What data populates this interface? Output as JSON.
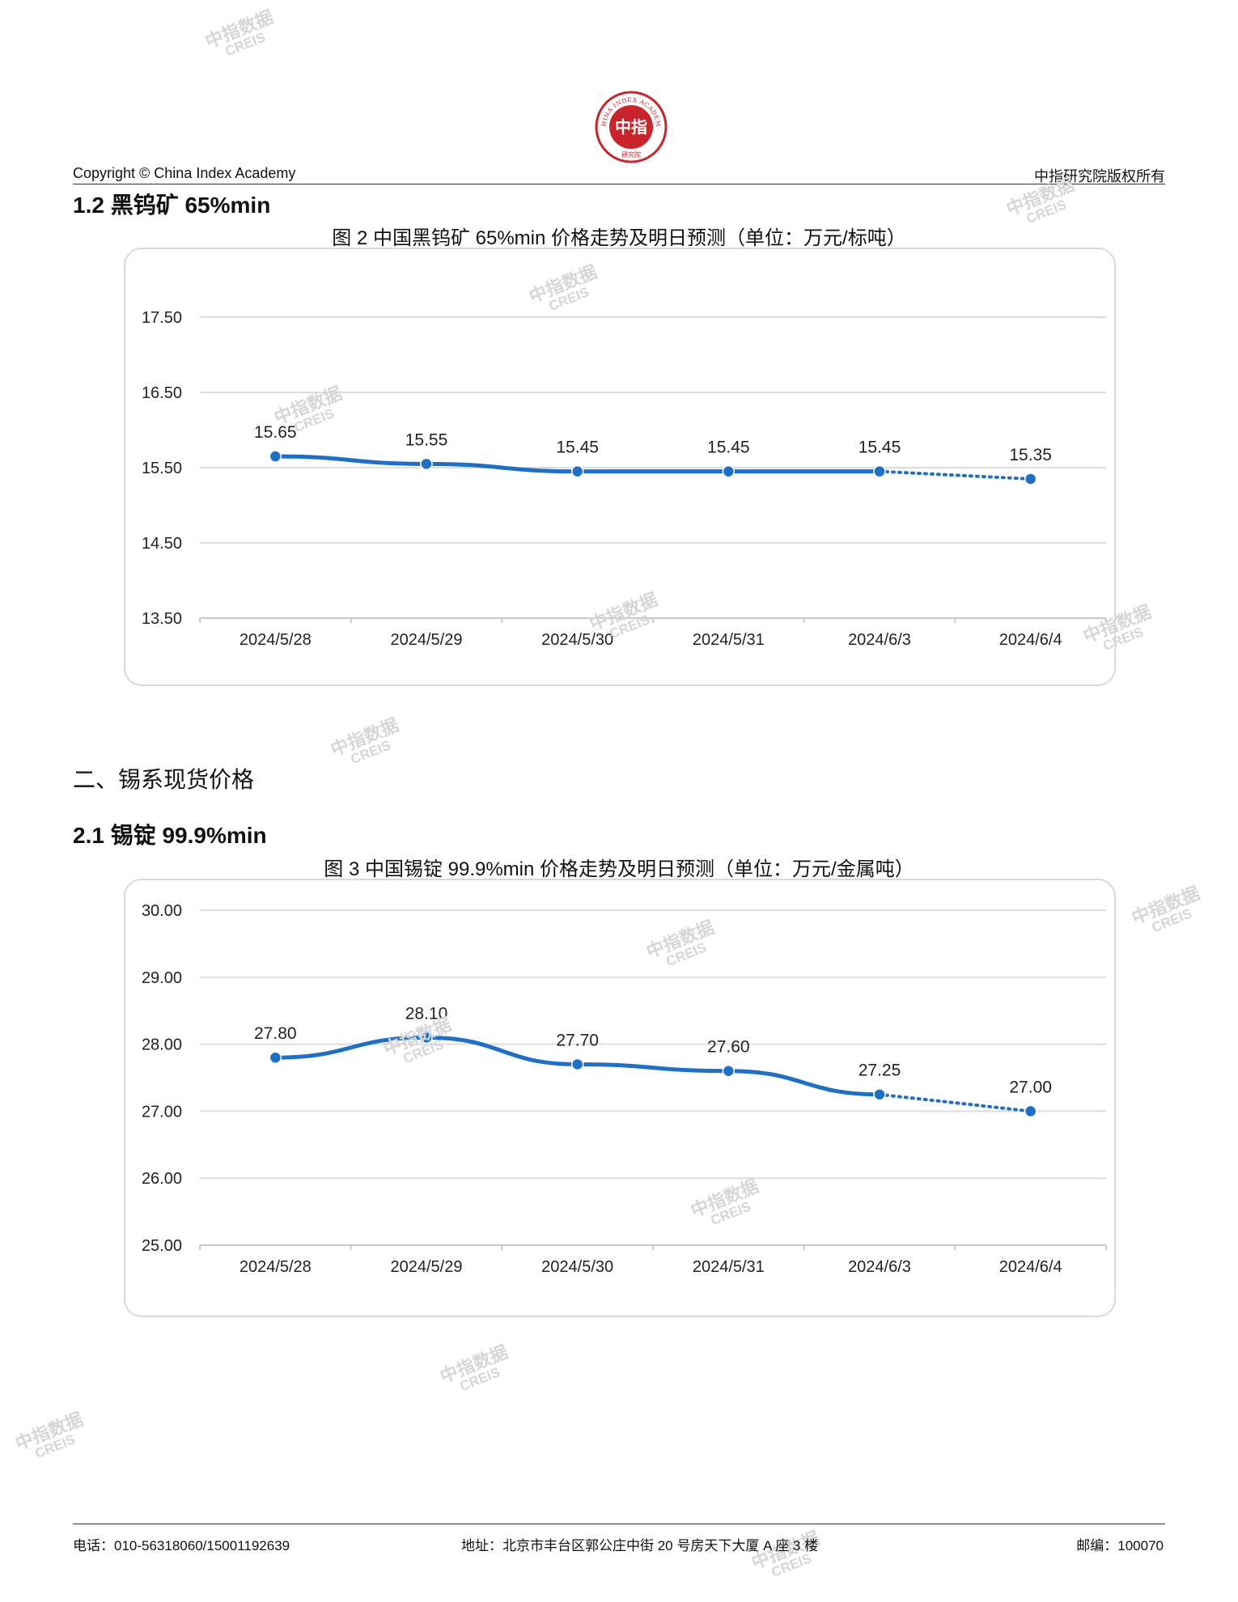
{
  "header": {
    "logo_text": "CHINA INDEX ACADEMY",
    "logo_glyphs": "中指",
    "logo_sub": "研究院",
    "copyright": "Copyright © China Index Academy",
    "rights": "中指研究院版权所有"
  },
  "sections": {
    "s12": "1.2 黑钨矿 65%min",
    "s2": "二、锡系现货价格",
    "s21": "2.1 锡锭 99.9%min"
  },
  "watermark": {
    "cn": "中指数据",
    "en": "CREIS"
  },
  "chart_data": [
    {
      "type": "line",
      "title": "图 2 中国黑钨矿 65%min 价格走势及明日预测（单位：万元/标吨）",
      "categories": [
        "2024/5/28",
        "2024/5/29",
        "2024/5/30",
        "2024/5/31",
        "2024/6/3",
        "2024/6/4"
      ],
      "values": [
        15.65,
        15.55,
        15.45,
        15.45,
        15.45,
        15.35
      ],
      "forecast_from_index": 4,
      "ylim": [
        13.5,
        17.5
      ],
      "yticks": [
        "17.50",
        "16.50",
        "15.50",
        "14.50",
        "13.50"
      ],
      "data_labels": [
        "15.65",
        "15.55",
        "15.45",
        "15.45",
        "15.45",
        "15.35"
      ],
      "grid": true,
      "color": "#1f6fc5"
    },
    {
      "type": "line",
      "title": "图 3 中国锡锭 99.9%min 价格走势及明日预测（单位：万元/金属吨）",
      "categories": [
        "2024/5/28",
        "2024/5/29",
        "2024/5/30",
        "2024/5/31",
        "2024/6/3",
        "2024/6/4"
      ],
      "values": [
        27.8,
        28.1,
        27.7,
        27.6,
        27.25,
        27.0
      ],
      "forecast_from_index": 4,
      "ylim": [
        25.0,
        30.0
      ],
      "yticks": [
        "30.00",
        "29.00",
        "28.00",
        "27.00",
        "26.00",
        "25.00"
      ],
      "data_labels": [
        "27.80",
        "28.10",
        "27.70",
        "27.60",
        "27.25",
        "27.00"
      ],
      "grid": true,
      "color": "#1f6fc5"
    }
  ],
  "footer": {
    "phone": "电话：010-56318060/15001192639",
    "address": "地址：北京市丰台区郭公庄中街 20 号房天下大厦 A 座 3 楼",
    "postcode": "邮编：100070"
  }
}
